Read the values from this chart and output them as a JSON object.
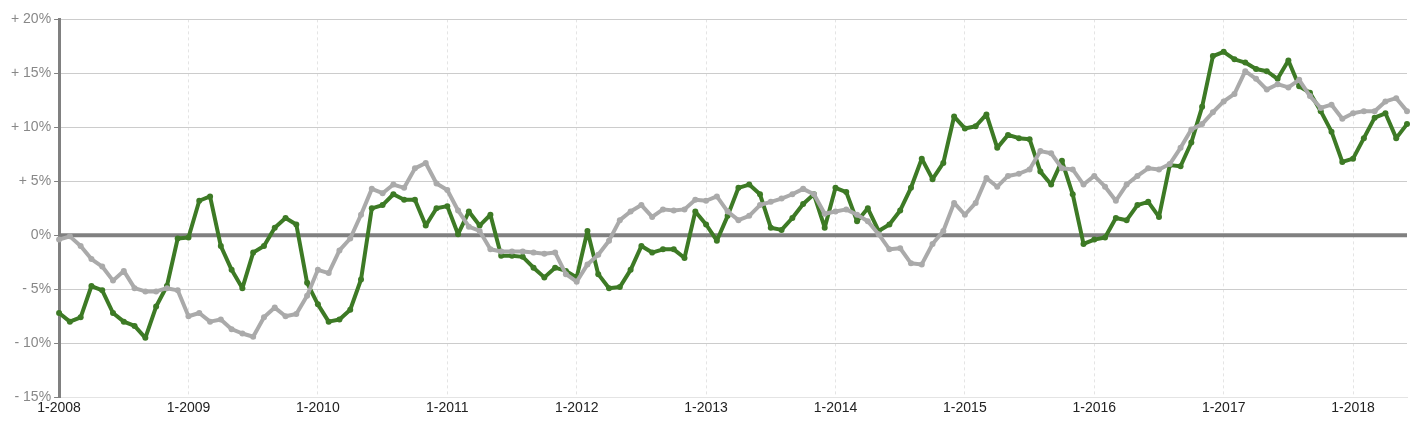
{
  "chart_data": {
    "type": "line",
    "x": [
      "2008-01",
      "2008-02",
      "2008-03",
      "2008-04",
      "2008-05",
      "2008-06",
      "2008-07",
      "2008-08",
      "2008-09",
      "2008-10",
      "2008-11",
      "2008-12",
      "2009-01",
      "2009-02",
      "2009-03",
      "2009-04",
      "2009-05",
      "2009-06",
      "2009-07",
      "2009-08",
      "2009-09",
      "2009-10",
      "2009-11",
      "2009-12",
      "2010-01",
      "2010-02",
      "2010-03",
      "2010-04",
      "2010-05",
      "2010-06",
      "2010-07",
      "2010-08",
      "2010-09",
      "2010-10",
      "2010-11",
      "2010-12",
      "2011-01",
      "2011-02",
      "2011-03",
      "2011-04",
      "2011-05",
      "2011-06",
      "2011-07",
      "2011-08",
      "2011-09",
      "2011-10",
      "2011-11",
      "2011-12",
      "2012-01",
      "2012-02",
      "2012-03",
      "2012-04",
      "2012-05",
      "2012-06",
      "2012-07",
      "2012-08",
      "2012-09",
      "2012-10",
      "2012-11",
      "2012-12",
      "2013-01",
      "2013-02",
      "2013-03",
      "2013-04",
      "2013-05",
      "2013-06",
      "2013-07",
      "2013-08",
      "2013-09",
      "2013-10",
      "2013-11",
      "2013-12",
      "2014-01",
      "2014-02",
      "2014-03",
      "2014-04",
      "2014-05",
      "2014-06",
      "2014-07",
      "2014-08",
      "2014-09",
      "2014-10",
      "2014-11",
      "2014-12",
      "2015-01",
      "2015-02",
      "2015-03",
      "2015-04",
      "2015-05",
      "2015-06",
      "2015-07",
      "2015-08",
      "2015-09",
      "2015-10",
      "2015-11",
      "2015-12",
      "2016-01",
      "2016-02",
      "2016-03",
      "2016-04",
      "2016-05",
      "2016-06",
      "2016-07",
      "2016-08",
      "2016-09",
      "2016-10",
      "2016-11",
      "2016-12",
      "2017-01",
      "2017-02",
      "2017-03",
      "2017-04",
      "2017-05",
      "2017-06",
      "2017-07",
      "2017-08",
      "2017-09",
      "2017-10",
      "2017-11",
      "2017-12",
      "2018-01",
      "2018-02",
      "2018-03",
      "2018-04",
      "2018-05",
      "2018-06"
    ],
    "series": [
      {
        "color": "#aaaaaa",
        "values": [
          -0.4,
          -0.1,
          -1.0,
          -2.2,
          -2.9,
          -4.2,
          -3.3,
          -4.9,
          -5.2,
          -5.2,
          -4.9,
          -5.1,
          -7.5,
          -7.2,
          -8.0,
          -7.8,
          -8.7,
          -9.1,
          -9.4,
          -7.6,
          -6.7,
          -7.5,
          -7.3,
          -5.6,
          -3.2,
          -3.5,
          -1.4,
          -0.3,
          1.9,
          4.3,
          3.9,
          4.7,
          4.4,
          6.2,
          6.7,
          4.8,
          4.2,
          2.3,
          0.8,
          0.4,
          -1.3,
          -1.5,
          -1.5,
          -1.5,
          -1.6,
          -1.7,
          -1.6,
          -3.6,
          -4.3,
          -2.7,
          -1.8,
          -0.5,
          1.4,
          2.2,
          2.8,
          1.7,
          2.4,
          2.3,
          2.4,
          3.3,
          3.2,
          3.6,
          2.2,
          1.4,
          1.8,
          2.8,
          3.1,
          3.4,
          3.8,
          4.3,
          3.8,
          2.0,
          2.2,
          2.4,
          1.9,
          1.3,
          0.1,
          -1.3,
          -1.2,
          -2.6,
          -2.7,
          -0.8,
          0.4,
          3.0,
          1.9,
          3.0,
          5.3,
          4.5,
          5.5,
          5.7,
          6.1,
          7.8,
          7.6,
          6.2,
          6.1,
          4.7,
          5.5,
          4.5,
          3.2,
          4.7,
          5.5,
          6.2,
          6.1,
          6.6,
          8.1,
          9.8,
          10.3,
          11.4,
          12.4,
          13.1,
          15.2,
          14.5,
          13.5,
          14.0,
          13.7,
          14.4,
          12.9,
          11.8,
          12.1,
          10.8,
          11.3,
          11.5,
          11.5,
          12.4,
          12.7,
          11.5
        ]
      },
      {
        "color": "#3d7a25",
        "values": [
          -7.2,
          -8.0,
          -7.6,
          -4.7,
          -5.1,
          -7.2,
          -8.0,
          -8.4,
          -9.5,
          -6.6,
          -4.7,
          -0.3,
          -0.2,
          3.2,
          3.6,
          -1.0,
          -3.2,
          -4.9,
          -1.6,
          -1.0,
          0.7,
          1.6,
          1.0,
          -4.4,
          -6.4,
          -8.0,
          -7.8,
          -6.9,
          -4.1,
          2.5,
          2.8,
          3.8,
          3.3,
          3.3,
          0.9,
          2.5,
          2.7,
          0.1,
          2.2,
          0.9,
          1.9,
          -1.9,
          -1.9,
          -2.0,
          -3.0,
          -3.9,
          -3.0,
          -3.3,
          -3.9,
          0.4,
          -3.6,
          -4.9,
          -4.8,
          -3.2,
          -1.0,
          -1.6,
          -1.3,
          -1.3,
          -2.1,
          2.2,
          1.0,
          -0.5,
          1.8,
          4.4,
          4.7,
          3.8,
          0.7,
          0.5,
          1.6,
          2.9,
          3.8,
          0.7,
          4.4,
          4.0,
          1.3,
          2.5,
          0.4,
          1.0,
          2.3,
          4.4,
          7.1,
          5.2,
          6.7,
          11.0,
          9.9,
          10.1,
          11.2,
          8.1,
          9.3,
          9.0,
          8.9,
          5.9,
          4.7,
          6.9,
          3.8,
          -0.8,
          -0.4,
          -0.2,
          1.6,
          1.4,
          2.8,
          3.1,
          1.7,
          6.5,
          6.4,
          8.6,
          11.9,
          16.6,
          17.0,
          16.3,
          16.0,
          15.4,
          15.2,
          14.5,
          16.2,
          13.8,
          13.2,
          11.5,
          9.6,
          6.8,
          7.1,
          9.0,
          10.9,
          11.3,
          9.0,
          10.3
        ]
      }
    ],
    "xlim": [
      "2008-01",
      "2018-06"
    ],
    "xticks": [
      {
        "value": "2008-01",
        "label": "1-2008"
      },
      {
        "value": "2009-01",
        "label": "1-2009"
      },
      {
        "value": "2010-01",
        "label": "1-2010"
      },
      {
        "value": "2011-01",
        "label": "1-2011"
      },
      {
        "value": "2012-01",
        "label": "1-2012"
      },
      {
        "value": "2013-01",
        "label": "1-2013"
      },
      {
        "value": "2014-01",
        "label": "1-2014"
      },
      {
        "value": "2015-01",
        "label": "1-2015"
      },
      {
        "value": "2016-01",
        "label": "1-2016"
      },
      {
        "value": "2017-01",
        "label": "1-2017"
      },
      {
        "value": "2018-01",
        "label": "1-2018"
      }
    ],
    "ylim": [
      -15,
      20
    ],
    "yticks": [
      {
        "value": -15,
        "label": "- 15%"
      },
      {
        "value": -10,
        "label": "- 10%"
      },
      {
        "value": -5,
        "label": "- 5%"
      },
      {
        "value": 0,
        "label": "0%"
      },
      {
        "value": 5,
        "label": "+ 5%"
      },
      {
        "value": 10,
        "label": "+ 10%"
      },
      {
        "value": 15,
        "label": "+ 15%"
      },
      {
        "value": 20,
        "label": "+ 20%"
      }
    ],
    "ref_lines": [
      {
        "axis": "y",
        "value": 0,
        "color": "#808080"
      }
    ],
    "grid": true,
    "legend": false,
    "marker": "circle",
    "line_style": "solid"
  }
}
